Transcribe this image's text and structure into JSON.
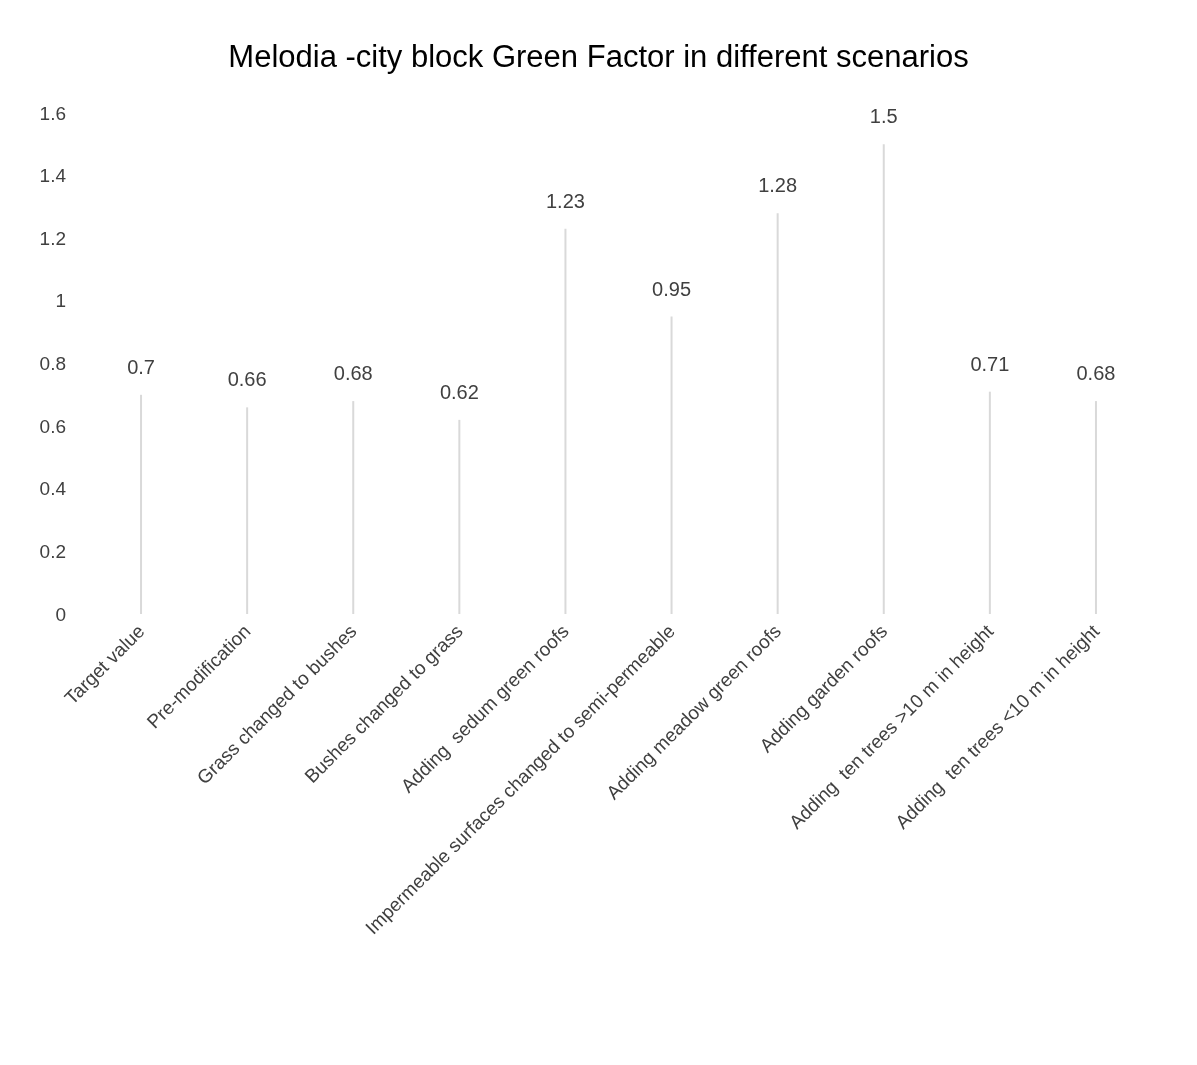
{
  "chart_data": {
    "type": "bar",
    "title": "Melodia -city block Green Factor in different scenarios",
    "categories": [
      "Target value",
      "Pre-modification",
      "Grass changed to bushes",
      "Bushes changed to grass",
      "Adding  sedum green roofs",
      "Impermeable surfaces changed to semi-permeable",
      "Adding meadow green roofs",
      "Adding garden roofs",
      "Adding  ten trees >10 m in height",
      "Adding  ten trees <10 m in height"
    ],
    "values": [
      0.7,
      0.66,
      0.68,
      0.62,
      1.23,
      0.95,
      1.28,
      1.5,
      0.71,
      0.68
    ],
    "color": "#d9d9d9",
    "ylim": [
      0,
      1.6
    ],
    "yticks": [
      0,
      0.2,
      0.4,
      0.6,
      0.8,
      1,
      1.2,
      1.4,
      1.6
    ],
    "grid": false,
    "data_labels": true
  }
}
